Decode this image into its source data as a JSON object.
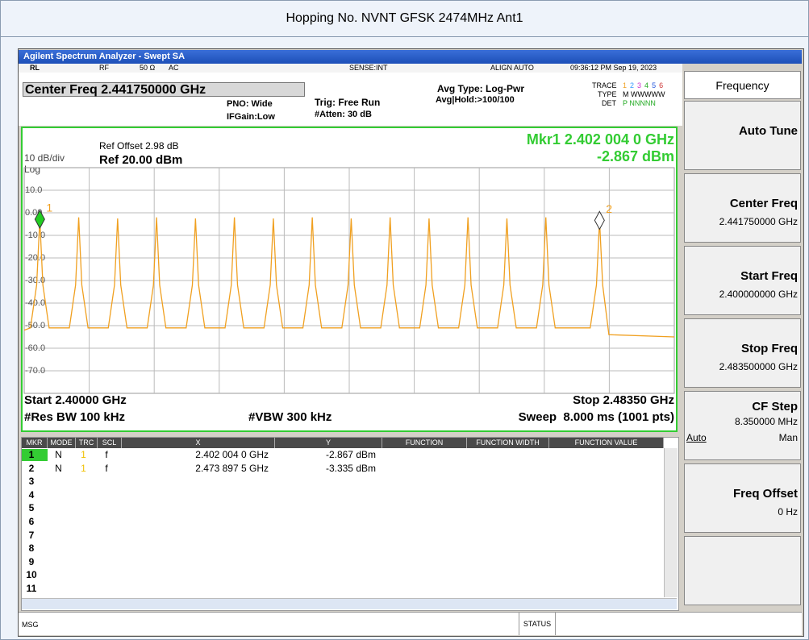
{
  "header": {
    "title": "Hopping No. NVNT GFSK 2474MHz Ant1"
  },
  "window": {
    "title": "Agilent Spectrum Analyzer - Swept SA"
  },
  "status_bar": {
    "items": [
      "RL",
      "RF",
      "50 Ω",
      "AC",
      "SENSE:INT",
      "ALIGN AUTO",
      "09:36:12 PM Sep 19, 2023"
    ]
  },
  "settings": {
    "center_freq": "Center Freq 2.441750000 GHz",
    "pno": "PNO: Wide",
    "ifgain": "IFGain:Low",
    "trig": "Trig: Free Run",
    "atten": "#Atten: 30 dB",
    "avg_type": "Avg Type: Log-Pwr",
    "avg_hold": "Avg|Hold:>100/100",
    "trace_label": "TRACE",
    "trace_numbers": [
      "1",
      "2",
      "3",
      "4",
      "5",
      "6"
    ],
    "type_label": "TYPE",
    "type_value": "M WWWWW",
    "det_label": "DET",
    "det_value": "P NNNNN"
  },
  "chart_data": {
    "type": "line",
    "color": "#f0a020",
    "ref_offset": "Ref Offset 2.98 dB",
    "scale": "10 dB/div",
    "ref_level": "Ref 20.00 dBm",
    "scale_type": "Log",
    "marker_readout": "Mkr1 2.402 004 0 GHz",
    "marker_value": "-2.867 dBm",
    "start": "Start 2.40000 GHz",
    "stop": "Stop 2.48350 GHz",
    "rbw": "#Res BW 100 kHz",
    "vbw": "#VBW 300 kHz",
    "sweep": "Sweep  8.000 ms (1001 pts)",
    "xlim": [
      2.4,
      2.4835
    ],
    "ylim": [
      -80,
      20
    ],
    "yticks": [
      {
        "value": 10,
        "label": "10.0"
      },
      {
        "value": 0,
        "label": "0.00"
      },
      {
        "value": -10,
        "label": "-10.0"
      },
      {
        "value": -20,
        "label": "-20.0"
      },
      {
        "value": -30,
        "label": "-30.0"
      },
      {
        "value": -40,
        "label": "-40.0"
      },
      {
        "value": -50,
        "label": "-50.0"
      },
      {
        "value": -60,
        "label": "-60.0"
      },
      {
        "value": -70,
        "label": "-70.0"
      }
    ],
    "grid": true,
    "x": [
      2.4,
      2.4008,
      2.4016,
      2.402004,
      2.4024,
      2.4032,
      2.4058,
      2.4066,
      2.407,
      2.4074,
      2.4082,
      2.4108,
      2.4116,
      2.412,
      2.4124,
      2.4132,
      2.4158,
      2.4166,
      2.417,
      2.4174,
      2.4182,
      2.4208,
      2.4216,
      2.422,
      2.4224,
      2.4232,
      2.4258,
      2.4266,
      2.427,
      2.4274,
      2.4282,
      2.4308,
      2.4316,
      2.432,
      2.4324,
      2.4332,
      2.4358,
      2.4366,
      2.437,
      2.4374,
      2.4382,
      2.4408,
      2.4416,
      2.442,
      2.4424,
      2.4432,
      2.4458,
      2.4466,
      2.447,
      2.4474,
      2.4482,
      2.4508,
      2.4516,
      2.452,
      2.4524,
      2.4532,
      2.4558,
      2.4566,
      2.457,
      2.4574,
      2.4582,
      2.4608,
      2.4616,
      2.462,
      2.4624,
      2.4632,
      2.4658,
      2.4666,
      2.467,
      2.4674,
      2.4682,
      2.4727,
      2.4735,
      2.4738975,
      2.4743,
      2.4751,
      2.4835
    ],
    "values": [
      -52,
      -51,
      -32,
      -2.867,
      -32,
      -51,
      -51,
      -32,
      -2,
      -32,
      -51,
      -51,
      -32,
      -2.5,
      -32,
      -51,
      -51,
      -32,
      -2,
      -32,
      -51,
      -51,
      -32,
      -2.5,
      -32,
      -51,
      -51,
      -32,
      -2,
      -32,
      -51,
      -51,
      -32,
      -2.5,
      -32,
      -51,
      -51,
      -32,
      -2,
      -32,
      -51,
      -51,
      -32,
      -2.5,
      -32,
      -51,
      -51,
      -32,
      -2,
      -32,
      -51,
      -51,
      -32,
      -2.5,
      -32,
      -51,
      -51,
      -32,
      -2,
      -32,
      -51,
      -51,
      -32,
      -2.5,
      -32,
      -51,
      -51,
      -32,
      -2,
      -32,
      -51,
      -51,
      -32,
      -3.335,
      -32,
      -54,
      -55
    ],
    "markers": [
      {
        "label": "1",
        "x": 2.402004,
        "y": -2.867,
        "color": "#22cc22"
      },
      {
        "label": "2",
        "x": 2.4738975,
        "y": -3.335,
        "color": "#ffffff"
      }
    ]
  },
  "marker_table": {
    "columns": [
      "MKR",
      "MODE",
      "TRC",
      "SCL",
      "X",
      "Y",
      "FUNCTION",
      "FUNCTION WIDTH",
      "FUNCTION VALUE"
    ],
    "rows": [
      {
        "id": "1",
        "mode": "N",
        "trc": "1",
        "scl": "f",
        "x": "2.402 004 0 GHz",
        "y": "-2.867 dBm"
      },
      {
        "id": "2",
        "mode": "N",
        "trc": "1",
        "scl": "f",
        "x": "2.473 897 5 GHz",
        "y": "-3.335 dBm"
      },
      {
        "id": "3"
      },
      {
        "id": "4"
      },
      {
        "id": "5"
      },
      {
        "id": "6"
      },
      {
        "id": "7"
      },
      {
        "id": "8"
      },
      {
        "id": "9"
      },
      {
        "id": "10"
      },
      {
        "id": "11"
      }
    ]
  },
  "softkeys": {
    "title": "Frequency",
    "keys": [
      {
        "label": "Auto Tune"
      },
      {
        "label": "Center Freq",
        "value": "2.441750000 GHz"
      },
      {
        "label": "Start Freq",
        "value": "2.400000000 GHz"
      },
      {
        "label": "Stop Freq",
        "value": "2.483500000 GHz"
      },
      {
        "label": "CF Step",
        "value": "8.350000 MHz",
        "options": [
          "Auto",
          "Man"
        ]
      },
      {
        "label": "Freq Offset",
        "value": "0 Hz"
      }
    ]
  },
  "footer": {
    "msg": "MSG",
    "status": "STATUS"
  }
}
